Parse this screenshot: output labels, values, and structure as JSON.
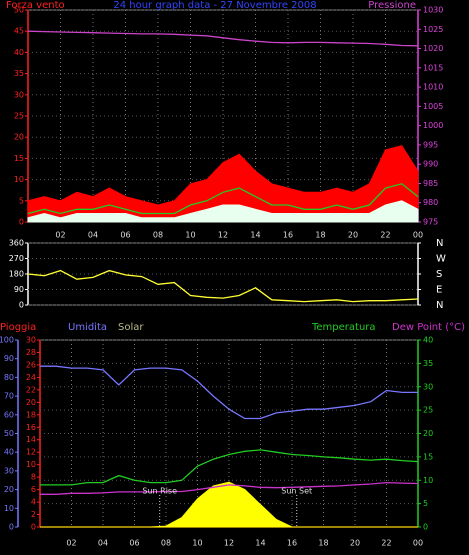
{
  "chart_data": [
    {
      "type": "line",
      "title": "24 hour graph data - 27 Novembre 2008",
      "x": [
        0,
        1,
        2,
        3,
        4,
        5,
        6,
        7,
        8,
        9,
        10,
        11,
        12,
        13,
        14,
        15,
        16,
        17,
        18,
        19,
        20,
        21,
        22,
        23,
        24
      ],
      "xlim": [
        0,
        24
      ],
      "xticks": [
        {
          "value": 2,
          "label": "02"
        },
        {
          "value": 4,
          "label": "04"
        },
        {
          "value": 6,
          "label": "06"
        },
        {
          "value": 8,
          "label": "08"
        },
        10,
        12,
        14,
        16,
        18,
        20,
        22,
        {
          "value": 24,
          "label": "00"
        }
      ],
      "ylim": [
        0,
        50
      ],
      "yticks": [
        0,
        5,
        10,
        15,
        20,
        25,
        30,
        35,
        40,
        45,
        50
      ],
      "ycolor": "#ff2020",
      "y2lim": [
        975,
        1030
      ],
      "y2ticks": [
        975,
        980,
        985,
        990,
        995,
        1000,
        1005,
        1010,
        1015,
        1020,
        1025,
        1030
      ],
      "y2color": "#dd44dd",
      "grid": true,
      "series": [
        {
          "name": "Forza vento",
          "color": "#ff0000",
          "style": "area",
          "values": [
            5,
            6,
            5,
            7,
            6,
            8,
            6,
            5,
            4,
            5,
            9,
            10,
            14,
            16,
            12,
            9,
            8,
            7,
            7,
            8,
            7,
            9,
            17,
            18,
            12
          ]
        },
        {
          "color": "#22cc22",
          "style": "line",
          "values": [
            2,
            3,
            2,
            3,
            3,
            4,
            3,
            2,
            2,
            2,
            4,
            5,
            7,
            8,
            6,
            4,
            4,
            3,
            3,
            4,
            3,
            4,
            8,
            9,
            6
          ]
        },
        {
          "color": "#e8fff0",
          "style": "area",
          "values": [
            1,
            2,
            1,
            2,
            2,
            2,
            2,
            1,
            1,
            1,
            2,
            3,
            4,
            4,
            3,
            2,
            2,
            2,
            2,
            2,
            2,
            2,
            4,
            5,
            3
          ]
        },
        {
          "name": "Pressione",
          "color": "#cc44cc",
          "style": "line",
          "axis": "y2",
          "values": [
            1024.5,
            1024.4,
            1024.3,
            1024.2,
            1024.1,
            1024,
            1023.9,
            1023.8,
            1023.8,
            1023.7,
            1023.5,
            1023.3,
            1022.8,
            1022.3,
            1021.9,
            1021.6,
            1021.5,
            1021.6,
            1021.6,
            1021.5,
            1021.4,
            1021.3,
            1021.1,
            1020.8,
            1020.7
          ]
        }
      ]
    },
    {
      "type": "line",
      "x": [
        0,
        1,
        2,
        3,
        4,
        5,
        6,
        7,
        8,
        9,
        10,
        11,
        12,
        13,
        14,
        15,
        16,
        17,
        18,
        19,
        20,
        21,
        22,
        23,
        24
      ],
      "xlim": [
        0,
        24
      ],
      "ylim": [
        0,
        360
      ],
      "yticks": [
        0,
        90,
        180,
        270,
        360
      ],
      "ycolor": "#ffffff",
      "y2lim": [
        0,
        360
      ],
      "y2ticks": [
        {
          "value": 360,
          "label": "N"
        },
        {
          "value": 270,
          "label": "W"
        },
        {
          "value": 180,
          "label": "S"
        },
        {
          "value": 90,
          "label": "E"
        },
        {
          "value": 0,
          "label": "N"
        }
      ],
      "y2color": "#ffffff",
      "grid": true,
      "series": [
        {
          "color": "#ffff33",
          "style": "line",
          "values": [
            180,
            170,
            200,
            150,
            160,
            200,
            175,
            165,
            120,
            130,
            55,
            45,
            40,
            55,
            100,
            30,
            25,
            20,
            25,
            30,
            20,
            25,
            25,
            30,
            35
          ]
        }
      ]
    },
    {
      "type": "line",
      "x": [
        0,
        1,
        2,
        3,
        4,
        5,
        6,
        7,
        8,
        9,
        10,
        11,
        12,
        13,
        14,
        15,
        16,
        17,
        18,
        19,
        20,
        21,
        22,
        23,
        24
      ],
      "xlim": [
        0,
        24
      ],
      "xticks": [
        {
          "value": 2,
          "label": "02"
        },
        {
          "value": 4,
          "label": "04"
        },
        {
          "value": 6,
          "label": "06"
        },
        {
          "value": 8,
          "label": "08"
        },
        10,
        12,
        14,
        16,
        18,
        20,
        22,
        {
          "value": 24,
          "label": "00"
        }
      ],
      "ylim": [
        0,
        100
      ],
      "yticks": [
        0,
        10,
        20,
        30,
        40,
        50,
        60,
        70,
        80,
        90,
        100
      ],
      "ycolor": "#7777ff",
      "y3lim": [
        0,
        30
      ],
      "y3ticks": [
        0,
        2,
        4,
        6,
        8,
        10,
        12,
        14,
        16,
        18,
        20,
        22,
        24,
        26,
        28,
        30
      ],
      "y3color": "#ff2020",
      "y2lim": [
        0,
        40
      ],
      "y2ticks": [
        0,
        5,
        10,
        15,
        20,
        25,
        30,
        35,
        40
      ],
      "y2color": "#22cc22",
      "grid": true,
      "series": [
        {
          "name": "Pioggia",
          "color": "#ff2020",
          "style": "line",
          "axis": "y3",
          "values": [
            0,
            0,
            0,
            0,
            0,
            0,
            0,
            0,
            0,
            0,
            0,
            0,
            0,
            0,
            0,
            0,
            0,
            0,
            0,
            0,
            0,
            0,
            0,
            0,
            0
          ]
        },
        {
          "name": "Umidita",
          "color": "#7777ff",
          "style": "line",
          "values": [
            86,
            86,
            85,
            85,
            84,
            76,
            84,
            85,
            85,
            84,
            78,
            70,
            63,
            58,
            58,
            61,
            62,
            63,
            63,
            64,
            65,
            67,
            73,
            72,
            72
          ]
        },
        {
          "name": "Solar",
          "color": "#ffff00",
          "style": "area",
          "values": [
            0,
            0,
            0,
            0,
            0,
            0,
            0,
            0,
            0.5,
            5,
            15,
            22,
            24,
            20,
            12,
            4,
            0,
            0,
            0,
            0,
            0,
            0,
            0,
            0,
            0
          ]
        },
        {
          "name": "Temperatura",
          "color": "#22cc22",
          "style": "line",
          "axis": "y2",
          "values": [
            9,
            9,
            9,
            9.5,
            9.5,
            11,
            10,
            9.5,
            9.5,
            10,
            13,
            14.5,
            15.5,
            16.2,
            16.5,
            16,
            15.5,
            15.3,
            15,
            14.8,
            14.5,
            14.3,
            14.5,
            14.2,
            14
          ]
        },
        {
          "name": "Dew Point (°C)",
          "color": "#cc33cc",
          "style": "line",
          "axis": "y2",
          "values": [
            7,
            7,
            7.2,
            7.2,
            7.3,
            7.5,
            7.5,
            7.5,
            7.6,
            7.6,
            8,
            8.5,
            9,
            8.8,
            8.5,
            8.4,
            8.5,
            8.6,
            8.7,
            8.8,
            9,
            9.2,
            9.5,
            9.4,
            9.3
          ]
        }
      ],
      "annotations": [
        {
          "text": "Sun Rise",
          "x": 7.6
        },
        {
          "text": "Sun Set",
          "x": 16.3
        }
      ]
    }
  ]
}
